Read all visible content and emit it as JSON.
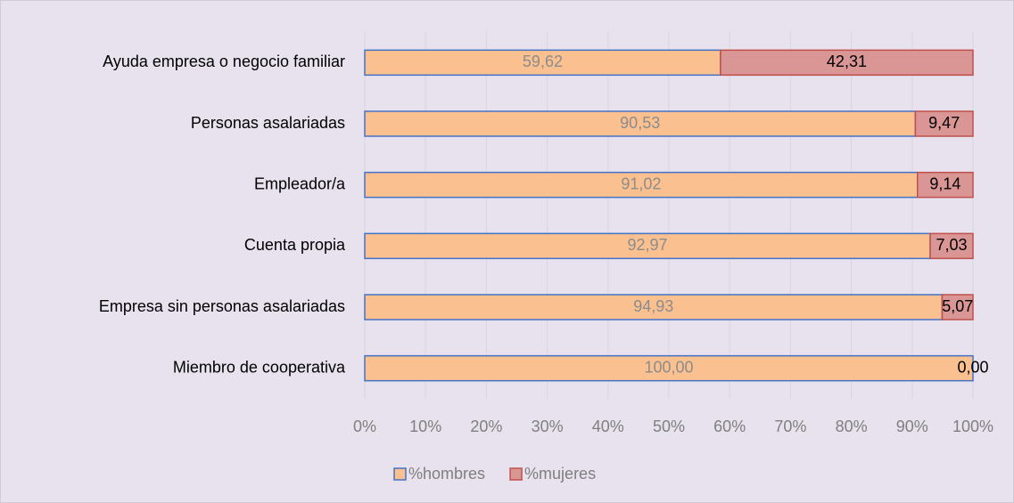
{
  "chart_data": {
    "type": "bar",
    "orientation": "horizontal",
    "stacking": "percent",
    "categories": [
      "Ayuda empresa o negocio familiar",
      "Personas asalariadas",
      "Empleador/a",
      "Cuenta propia",
      "Empresa sin  personas asalariadas",
      "Miembro de cooperativa"
    ],
    "series": [
      {
        "name": "%hombres",
        "color": "#fac090",
        "edge": "#4472c4",
        "label_color": "#8c8c8c",
        "values": [
          59.62,
          90.53,
          91.02,
          92.97,
          94.93,
          100.0
        ],
        "value_labels": [
          "59,62",
          "90,53",
          "91,02",
          "92,97",
          "94,93",
          "100,00"
        ]
      },
      {
        "name": "%mujeres",
        "color": "#d99694",
        "edge": "#c0504d",
        "label_color": "#000000",
        "values": [
          42.31,
          9.47,
          9.14,
          7.03,
          5.07,
          0.0
        ],
        "value_labels": [
          "42,31",
          "9,47",
          "9,14",
          "7,03",
          "5,07",
          "0,00"
        ]
      }
    ],
    "xlim": [
      0,
      100
    ],
    "xticks": [
      {
        "value": 0,
        "label": "0%"
      },
      {
        "value": 10,
        "label": "10%"
      },
      {
        "value": 20,
        "label": "20%"
      },
      {
        "value": 30,
        "label": "30%"
      },
      {
        "value": 40,
        "label": "40%"
      },
      {
        "value": 50,
        "label": "50%"
      },
      {
        "value": 60,
        "label": "60%"
      },
      {
        "value": 70,
        "label": "70%"
      },
      {
        "value": 80,
        "label": "80%"
      },
      {
        "value": 90,
        "label": "90%"
      },
      {
        "value": 100,
        "label": "100%"
      }
    ],
    "grid": true,
    "legend": "bottom"
  }
}
